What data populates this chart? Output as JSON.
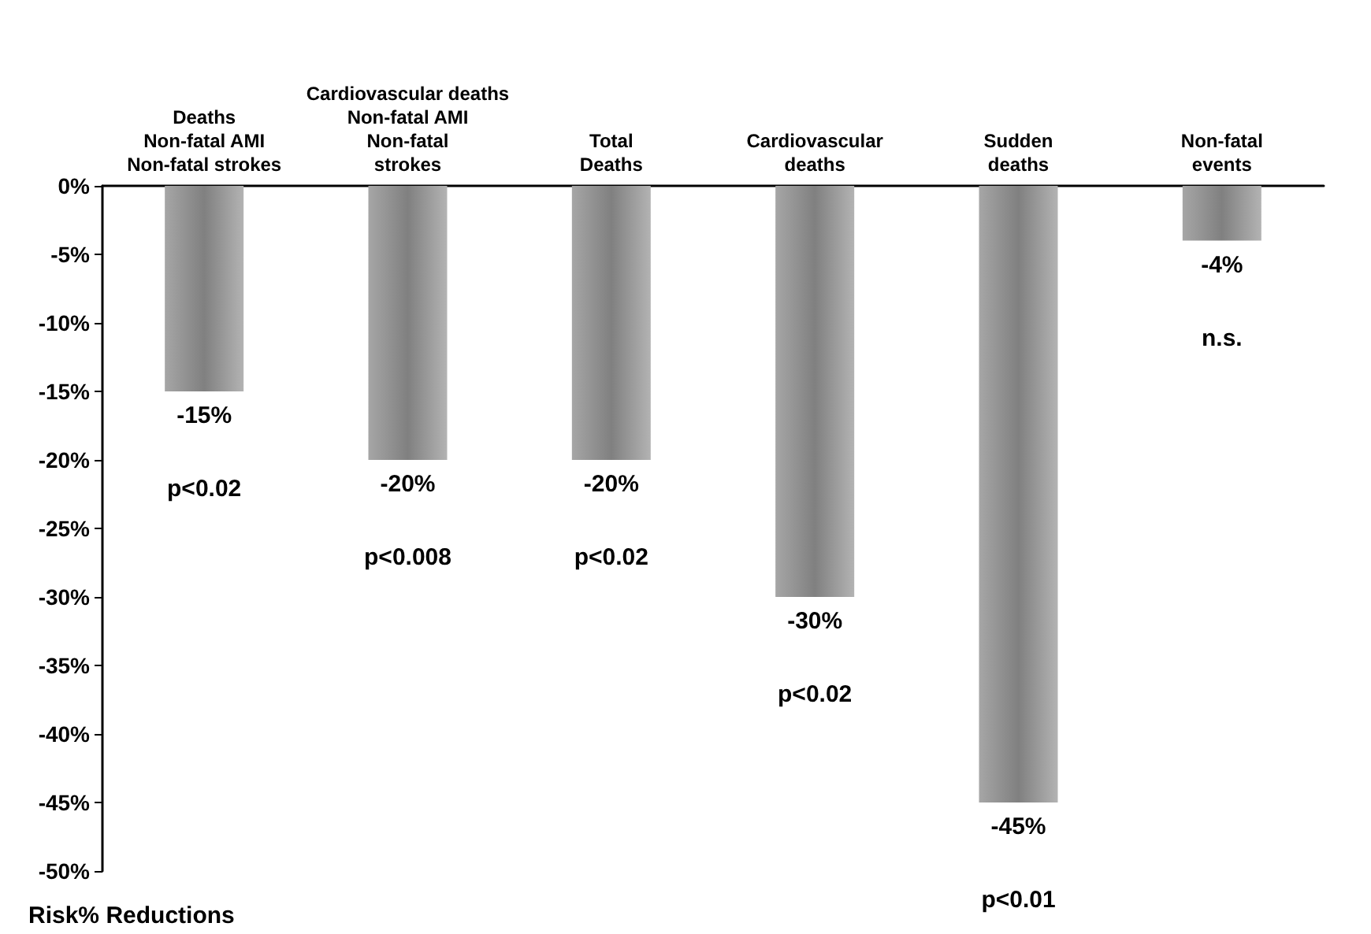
{
  "chart_data": {
    "type": "bar",
    "ylabel": "Risk% Reductions",
    "categories": [
      "Deaths\nNon-fatal AMI\nNon-fatal strokes",
      "Cardiovascular deaths\nNon-fatal AMI\nNon-fatal\nstrokes",
      "Total\nDeaths",
      "Cardiovascular\ndeaths",
      "Sudden\ndeaths",
      "Non-fatal\nevents"
    ],
    "values": [
      -15,
      -20,
      -20,
      -30,
      -45,
      -4
    ],
    "value_labels": [
      "-15%",
      "-20%",
      "-20%",
      "-30%",
      "-45%",
      "-4%"
    ],
    "color": "#808080",
    "ylim": [
      -50,
      0
    ],
    "yticks": [
      {
        "value": 0,
        "label": "0%"
      },
      {
        "value": -5,
        "label": "-5%"
      },
      {
        "value": -10,
        "label": "-10%"
      },
      {
        "value": -15,
        "label": "-15%"
      },
      {
        "value": -20,
        "label": "-20%"
      },
      {
        "value": -25,
        "label": "-25%"
      },
      {
        "value": -30,
        "label": "-30%"
      },
      {
        "value": -35,
        "label": "-35%"
      },
      {
        "value": -40,
        "label": "-40%"
      },
      {
        "value": -45,
        "label": "-45%"
      },
      {
        "value": -50,
        "label": "-50%"
      }
    ],
    "annotations": [
      "p<0.02",
      "p<0.008",
      "p<0.02",
      "p<0.02",
      "p<0.01",
      "n.s."
    ],
    "grid": false
  }
}
